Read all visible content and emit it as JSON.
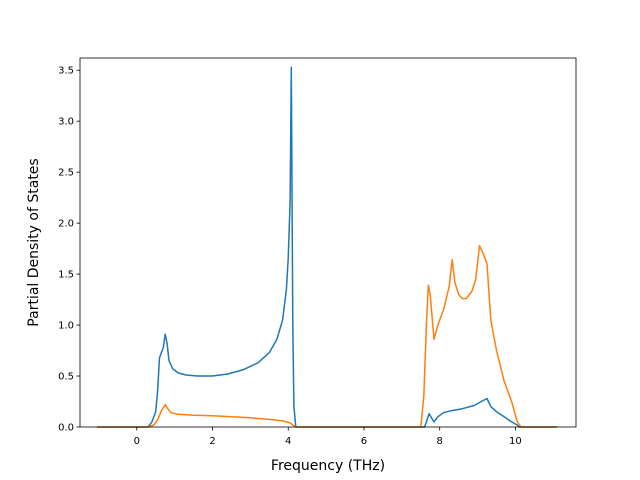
{
  "chart_data": {
    "type": "line",
    "title": "",
    "xlabel": "Frequency (THz)",
    "ylabel": "Partial Density of States",
    "xlim": [
      -1.5,
      11.6
    ],
    "ylim": [
      0,
      3.62
    ],
    "xticks": [
      0,
      2,
      4,
      6,
      8,
      10
    ],
    "yticks": [
      0.0,
      0.5,
      1.0,
      1.5,
      2.0,
      2.5,
      3.0,
      3.5
    ],
    "xtick_labels": [
      "0",
      "2",
      "4",
      "6",
      "8",
      "10"
    ],
    "ytick_labels": [
      "0.0",
      "0.5",
      "1.0",
      "1.5",
      "2.0",
      "2.5",
      "3.0",
      "3.5"
    ],
    "grid": false,
    "legend": "none",
    "series": [
      {
        "color": "#1f77b4",
        "points": [
          [
            -1.05,
            0
          ],
          [
            0.3,
            0
          ],
          [
            0.4,
            0.05
          ],
          [
            0.5,
            0.15
          ],
          [
            0.55,
            0.35
          ],
          [
            0.6,
            0.68
          ],
          [
            0.7,
            0.78
          ],
          [
            0.75,
            0.91
          ],
          [
            0.8,
            0.82
          ],
          [
            0.85,
            0.65
          ],
          [
            0.95,
            0.57
          ],
          [
            1.1,
            0.53
          ],
          [
            1.3,
            0.51
          ],
          [
            1.6,
            0.5
          ],
          [
            2.0,
            0.5
          ],
          [
            2.4,
            0.52
          ],
          [
            2.8,
            0.56
          ],
          [
            3.2,
            0.63
          ],
          [
            3.5,
            0.73
          ],
          [
            3.7,
            0.86
          ],
          [
            3.85,
            1.05
          ],
          [
            3.95,
            1.35
          ],
          [
            4.0,
            1.65
          ],
          [
            4.05,
            2.2
          ],
          [
            4.08,
            3.53
          ],
          [
            4.12,
            1.0
          ],
          [
            4.15,
            0.2
          ],
          [
            4.2,
            0
          ],
          [
            7.6,
            0
          ],
          [
            7.65,
            0.05
          ],
          [
            7.72,
            0.13
          ],
          [
            7.8,
            0.08
          ],
          [
            7.85,
            0.05
          ],
          [
            7.95,
            0.1
          ],
          [
            8.1,
            0.14
          ],
          [
            8.3,
            0.16
          ],
          [
            8.6,
            0.18
          ],
          [
            8.9,
            0.21
          ],
          [
            9.05,
            0.24
          ],
          [
            9.15,
            0.26
          ],
          [
            9.25,
            0.28
          ],
          [
            9.35,
            0.2
          ],
          [
            9.5,
            0.15
          ],
          [
            9.7,
            0.1
          ],
          [
            9.9,
            0.05
          ],
          [
            10.05,
            0.02
          ],
          [
            10.1,
            0
          ],
          [
            11.1,
            0
          ]
        ]
      },
      {
        "color": "#ff7f0e",
        "points": [
          [
            -1.05,
            0
          ],
          [
            0.3,
            0
          ],
          [
            0.45,
            0.02
          ],
          [
            0.55,
            0.07
          ],
          [
            0.65,
            0.16
          ],
          [
            0.75,
            0.22
          ],
          [
            0.82,
            0.18
          ],
          [
            0.9,
            0.14
          ],
          [
            1.1,
            0.125
          ],
          [
            1.5,
            0.115
          ],
          [
            2.0,
            0.11
          ],
          [
            2.5,
            0.1
          ],
          [
            3.0,
            0.09
          ],
          [
            3.5,
            0.075
          ],
          [
            3.85,
            0.06
          ],
          [
            4.05,
            0.04
          ],
          [
            4.12,
            0.02
          ],
          [
            4.2,
            0
          ],
          [
            7.5,
            0
          ],
          [
            7.58,
            0.3
          ],
          [
            7.65,
            1.0
          ],
          [
            7.7,
            1.39
          ],
          [
            7.75,
            1.3
          ],
          [
            7.85,
            0.86
          ],
          [
            7.95,
            1.0
          ],
          [
            8.1,
            1.15
          ],
          [
            8.25,
            1.38
          ],
          [
            8.33,
            1.64
          ],
          [
            8.4,
            1.42
          ],
          [
            8.5,
            1.3
          ],
          [
            8.6,
            1.26
          ],
          [
            8.7,
            1.26
          ],
          [
            8.85,
            1.33
          ],
          [
            8.95,
            1.45
          ],
          [
            9.05,
            1.78
          ],
          [
            9.15,
            1.7
          ],
          [
            9.25,
            1.6
          ],
          [
            9.35,
            1.05
          ],
          [
            9.5,
            0.75
          ],
          [
            9.7,
            0.45
          ],
          [
            9.9,
            0.25
          ],
          [
            10.05,
            0.05
          ],
          [
            10.15,
            0
          ],
          [
            11.1,
            0
          ]
        ]
      }
    ]
  }
}
